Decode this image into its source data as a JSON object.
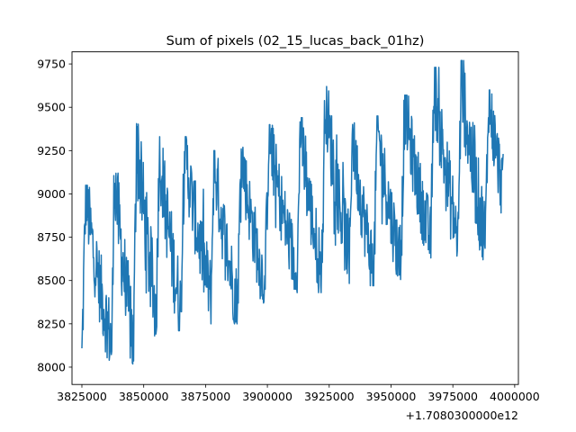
{
  "chart_data": {
    "type": "line",
    "title": "Sum of pixels (02_15_lucas_back_01hz)",
    "xlabel": "",
    "ylabel": "",
    "x_offset_label": "+1.7080300000e12",
    "xlim": [
      3821000,
      4001500
    ],
    "ylim": [
      7900,
      9820
    ],
    "x_ticks": [
      3825000,
      3850000,
      3875000,
      3900000,
      3925000,
      3950000,
      3975000,
      4000000
    ],
    "x_tick_labels": [
      "3825000",
      "3850000",
      "3875000",
      "3900000",
      "3925000",
      "3950000",
      "3975000",
      "4000000"
    ],
    "y_ticks": [
      8000,
      8250,
      8500,
      8750,
      9000,
      9250,
      9500,
      9750
    ],
    "y_tick_labels": [
      "8000",
      "8250",
      "8500",
      "8750",
      "9000",
      "9250",
      "9500",
      "9750"
    ],
    "grid": false,
    "line_color": "#1f77b4",
    "cycles": [
      {
        "start": 3825000,
        "peak": 9050,
        "trough": 8040
      },
      {
        "start": 3837000,
        "peak": 9180,
        "trough": 8000
      },
      {
        "start": 3846000,
        "peak": 9430,
        "trough": 8180
      },
      {
        "start": 3855000,
        "peak": 9330,
        "trough": 8210
      },
      {
        "start": 3865000,
        "peak": 9330,
        "trough": 8320
      },
      {
        "start": 3877000,
        "peak": 9250,
        "trough": 8250
      },
      {
        "start": 3888000,
        "peak": 9300,
        "trough": 8370
      },
      {
        "start": 3899000,
        "peak": 9400,
        "trough": 8450
      },
      {
        "start": 3912000,
        "peak": 9440,
        "trough": 8430
      },
      {
        "start": 3922000,
        "peak": 9620,
        "trough": 8540
      },
      {
        "start": 3933000,
        "peak": 9410,
        "trough": 8470
      },
      {
        "start": 3943000,
        "peak": 9450,
        "trough": 8500
      },
      {
        "start": 3954000,
        "peak": 9570,
        "trough": 8630
      },
      {
        "start": 3966000,
        "peak": 9730,
        "trough": 8630
      },
      {
        "start": 3977000,
        "peak": 9770,
        "trough": 8620
      },
      {
        "start": 3988000,
        "peak": 9600,
        "trough": 8650
      }
    ],
    "x_end": 3995500
  }
}
